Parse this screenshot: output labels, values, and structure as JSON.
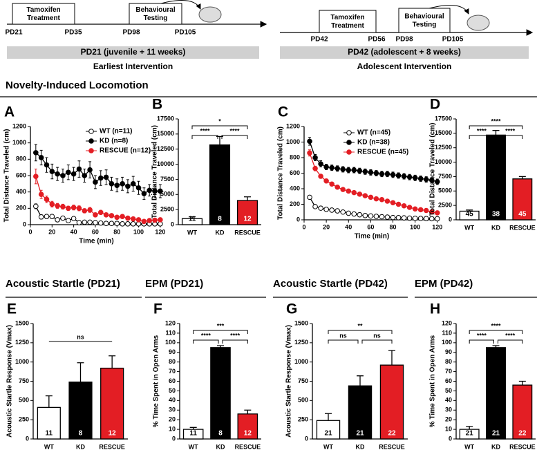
{
  "timelines": [
    {
      "boxes": [
        "Tamoxifen Treatment",
        "Behavioural Testing"
      ],
      "labels": [
        "PD21",
        "PD35",
        "PD98",
        "PD105"
      ],
      "banner": "PD21 (juvenile + 11 weeks)",
      "caption": "Earliest Intervention"
    },
    {
      "boxes": [
        "Tamoxifen Treatment",
        "Behavioural Testing"
      ],
      "labels": [
        "PD42",
        "PD56",
        "PD98",
        "PD105"
      ],
      "banner": "PD42 (adolescent + 8 weeks)",
      "caption": "Adolescent Intervention"
    }
  ],
  "sections": [
    "Novelty-Induced Locomotion",
    "Acoustic Startle (PD21)",
    "EPM (PD21)",
    "Acoustic Startle (PD42)",
    "EPM (PD42)"
  ],
  "chart_data": [
    {
      "type": "line",
      "panel": "A",
      "ylabel": "Total Distance Traveled (cm)",
      "xlabel": "Time (min)",
      "x": [
        5,
        10,
        15,
        20,
        25,
        30,
        35,
        40,
        45,
        50,
        55,
        60,
        65,
        70,
        75,
        80,
        85,
        90,
        95,
        100,
        105,
        110,
        115,
        120
      ],
      "xlim": [
        0,
        122
      ],
      "xticks": [
        0,
        20,
        40,
        60,
        80,
        100,
        120
      ],
      "ylim": [
        0,
        1200
      ],
      "yticks": [
        0,
        200,
        400,
        600,
        800,
        1000,
        1200
      ],
      "series": [
        {
          "name": "WT (n=11)",
          "color": "#ffffff",
          "values": [
            225,
            95,
            100,
            100,
            60,
            80,
            50,
            75,
            25,
            30,
            30,
            25,
            20,
            15,
            15,
            15,
            10,
            10,
            10,
            10,
            10,
            10,
            10,
            10
          ],
          "errors": [
            30,
            25,
            25,
            25,
            20,
            20,
            15,
            20,
            10,
            10,
            10,
            10,
            8,
            8,
            8,
            8,
            6,
            6,
            6,
            6,
            6,
            6,
            6,
            6
          ]
        },
        {
          "name": "KD (n=8)",
          "color": "#000000",
          "values": [
            880,
            820,
            730,
            650,
            620,
            600,
            640,
            620,
            680,
            600,
            670,
            520,
            570,
            580,
            500,
            480,
            500,
            470,
            500,
            450,
            380,
            420,
            410,
            410
          ],
          "errors": [
            100,
            90,
            90,
            90,
            80,
            80,
            90,
            80,
            100,
            80,
            100,
            80,
            90,
            90,
            80,
            80,
            80,
            80,
            90,
            80,
            70,
            70,
            80,
            80
          ]
        },
        {
          "name": "RESCUE (n=12)",
          "color": "#e31e24",
          "values": [
            590,
            370,
            310,
            250,
            230,
            220,
            200,
            210,
            200,
            170,
            180,
            120,
            150,
            120,
            110,
            90,
            100,
            80,
            70,
            60,
            40,
            50,
            55,
            60
          ],
          "errors": [
            90,
            50,
            40,
            35,
            30,
            30,
            25,
            30,
            30,
            25,
            30,
            20,
            25,
            20,
            20,
            20,
            20,
            15,
            15,
            15,
            10,
            10,
            10,
            15
          ]
        }
      ]
    },
    {
      "type": "bar",
      "panel": "B",
      "ylabel": "Total Distance Traveled (cm)",
      "categories": [
        "WT",
        "KD",
        "RESCUE"
      ],
      "colors": [
        "#ffffff",
        "#000000",
        "#e31e24"
      ],
      "values": [
        1000,
        13200,
        4000
      ],
      "errors": [
        300,
        1400,
        600
      ],
      "n": [
        11,
        8,
        12
      ],
      "ylim": [
        0,
        17500
      ],
      "yticks": [
        0,
        2500,
        5000,
        7500,
        10000,
        12500,
        15000,
        17500
      ],
      "significance": [
        {
          "from": "WT",
          "to": "KD",
          "label": "****"
        },
        {
          "from": "KD",
          "to": "RESCUE",
          "label": "****"
        },
        {
          "from": "WT",
          "to": "RESCUE",
          "label": "*"
        }
      ]
    },
    {
      "type": "line",
      "panel": "C",
      "ylabel": "Total Distance Traveled (cm)",
      "xlabel": "Time (min)",
      "x": [
        5,
        10,
        15,
        20,
        25,
        30,
        35,
        40,
        45,
        50,
        55,
        60,
        65,
        70,
        75,
        80,
        85,
        90,
        95,
        100,
        105,
        110,
        115,
        120
      ],
      "xlim": [
        0,
        122
      ],
      "xticks": [
        0,
        20,
        40,
        60,
        80,
        100,
        120
      ],
      "ylim": [
        0,
        1200
      ],
      "yticks": [
        0,
        200,
        400,
        600,
        800,
        1000,
        1200
      ],
      "series": [
        {
          "name": "WT (n=45)",
          "color": "#ffffff",
          "values": [
            290,
            170,
            150,
            135,
            125,
            115,
            100,
            85,
            75,
            65,
            55,
            50,
            45,
            40,
            35,
            30,
            28,
            25,
            22,
            20,
            18,
            16,
            15,
            14
          ],
          "errors": [
            20,
            12,
            10,
            10,
            8,
            8,
            8,
            6,
            6,
            6,
            5,
            5,
            5,
            4,
            4,
            4,
            4,
            4,
            3,
            3,
            3,
            3,
            3,
            3
          ]
        },
        {
          "name": "KD (n=38)",
          "color": "#000000",
          "values": [
            1010,
            800,
            720,
            680,
            670,
            660,
            650,
            640,
            640,
            630,
            620,
            610,
            600,
            590,
            590,
            580,
            570,
            560,
            550,
            540,
            530,
            520,
            510,
            490
          ],
          "errors": [
            50,
            40,
            40,
            35,
            35,
            35,
            35,
            35,
            35,
            35,
            35,
            35,
            35,
            35,
            35,
            35,
            35,
            35,
            35,
            35,
            35,
            35,
            35,
            35
          ]
        },
        {
          "name": "RESCUE (n=45)",
          "color": "#e31e24",
          "values": [
            860,
            660,
            560,
            500,
            460,
            420,
            390,
            370,
            350,
            330,
            310,
            290,
            270,
            260,
            240,
            220,
            200,
            180,
            160,
            140,
            130,
            120,
            100,
            90
          ],
          "errors": [
            40,
            30,
            25,
            25,
            20,
            20,
            20,
            20,
            18,
            18,
            18,
            16,
            16,
            16,
            15,
            15,
            14,
            14,
            13,
            13,
            12,
            12,
            10,
            10
          ]
        }
      ]
    },
    {
      "type": "bar",
      "panel": "D",
      "ylabel": "Total Distance Traveled (cm)",
      "categories": [
        "WT",
        "KD",
        "RESCUE"
      ],
      "colors": [
        "#ffffff",
        "#000000",
        "#e31e24"
      ],
      "values": [
        1500,
        14700,
        7100
      ],
      "errors": [
        200,
        800,
        400
      ],
      "n": [
        45,
        38,
        45
      ],
      "ylim": [
        0,
        17500
      ],
      "yticks": [
        0,
        2500,
        5000,
        7500,
        10000,
        12500,
        15000,
        17500
      ],
      "significance": [
        {
          "from": "WT",
          "to": "KD",
          "label": "****"
        },
        {
          "from": "KD",
          "to": "RESCUE",
          "label": "****"
        },
        {
          "from": "WT",
          "to": "RESCUE",
          "label": "****"
        }
      ]
    },
    {
      "type": "bar",
      "panel": "E",
      "ylabel": "Acoustic Startle Response (Vmax)",
      "categories": [
        "WT",
        "KD",
        "RESCUE"
      ],
      "colors": [
        "#ffffff",
        "#000000",
        "#e31e24"
      ],
      "values": [
        410,
        740,
        920
      ],
      "errors": [
        150,
        250,
        160
      ],
      "n": [
        11,
        8,
        12
      ],
      "ylim": [
        0,
        1500
      ],
      "yticks": [
        0,
        250,
        500,
        750,
        1000,
        1250,
        1500
      ],
      "significance": [
        {
          "from": "WT",
          "to": "RESCUE",
          "label": "ns"
        }
      ]
    },
    {
      "type": "bar",
      "panel": "F",
      "ylabel": "% Time Spent in Open Arms",
      "categories": [
        "WT",
        "KD",
        "RESCUE"
      ],
      "colors": [
        "#ffffff",
        "#000000",
        "#e31e24"
      ],
      "values": [
        10,
        95,
        26
      ],
      "errors": [
        2,
        2,
        4
      ],
      "n": [
        11,
        8,
        12
      ],
      "ylim": [
        0,
        120
      ],
      "yticks": [
        0,
        10,
        20,
        30,
        40,
        50,
        60,
        70,
        80,
        90,
        100,
        110,
        120
      ],
      "significance": [
        {
          "from": "WT",
          "to": "KD",
          "label": "****"
        },
        {
          "from": "KD",
          "to": "RESCUE",
          "label": "****"
        },
        {
          "from": "WT",
          "to": "RESCUE",
          "label": "***"
        }
      ]
    },
    {
      "type": "bar",
      "panel": "G",
      "ylabel": "Acoustic Startle Response (Vmax)",
      "categories": [
        "WT",
        "KD",
        "RESCUE"
      ],
      "colors": [
        "#ffffff",
        "#000000",
        "#e31e24"
      ],
      "values": [
        240,
        690,
        960
      ],
      "errors": [
        90,
        130,
        190
      ],
      "n": [
        21,
        21,
        22
      ],
      "ylim": [
        0,
        1500
      ],
      "yticks": [
        0,
        250,
        500,
        750,
        1000,
        1250,
        1500
      ],
      "significance": [
        {
          "from": "WT",
          "to": "KD",
          "label": "ns"
        },
        {
          "from": "KD",
          "to": "RESCUE",
          "label": "ns"
        },
        {
          "from": "WT",
          "to": "RESCUE",
          "label": "**"
        }
      ]
    },
    {
      "type": "bar",
      "panel": "H",
      "ylabel": "% Time Spent in Open Arms",
      "categories": [
        "WT",
        "KD",
        "RESCUE"
      ],
      "colors": [
        "#ffffff",
        "#000000",
        "#e31e24"
      ],
      "values": [
        10,
        95,
        56
      ],
      "errors": [
        3,
        2,
        4
      ],
      "n": [
        21,
        21,
        22
      ],
      "ylim": [
        0,
        120
      ],
      "yticks": [
        0,
        10,
        20,
        30,
        40,
        50,
        60,
        70,
        80,
        90,
        100,
        110,
        120
      ],
      "significance": [
        {
          "from": "WT",
          "to": "KD",
          "label": "****"
        },
        {
          "from": "KD",
          "to": "RESCUE",
          "label": "****"
        },
        {
          "from": "WT",
          "to": "RESCUE",
          "label": "****"
        }
      ]
    }
  ]
}
